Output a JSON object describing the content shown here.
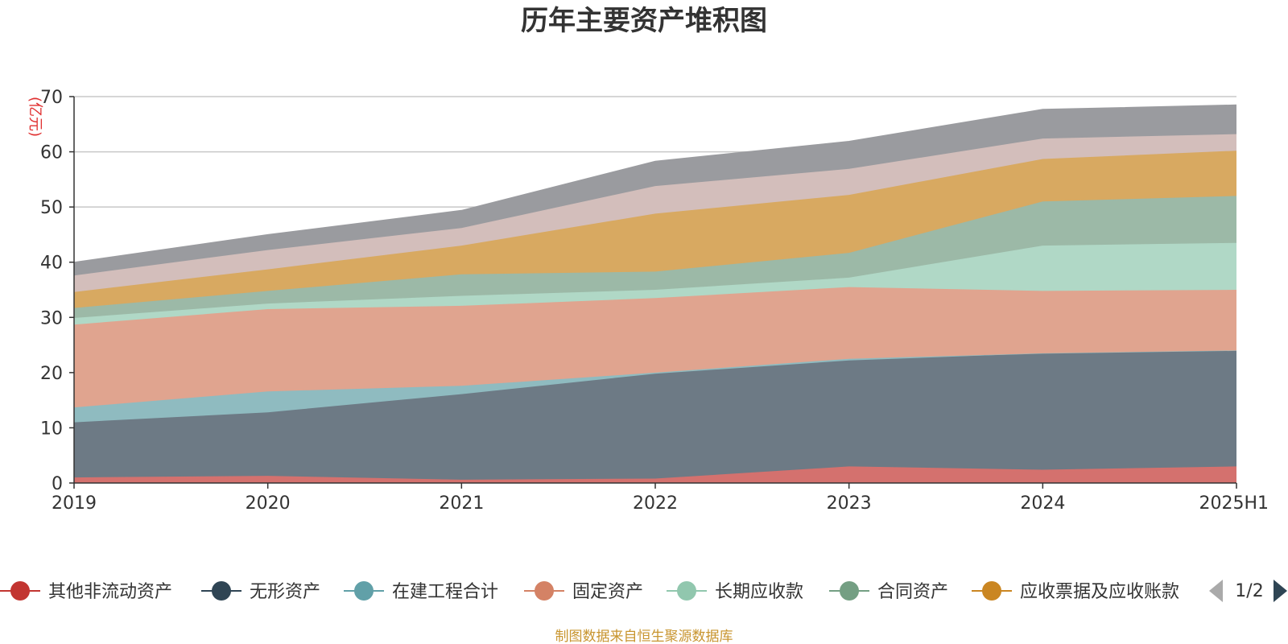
{
  "chart_data": {
    "type": "area",
    "stacked": true,
    "title": "历年主要资产堆积图",
    "unit_label": "(亿元)",
    "categories": [
      "2019",
      "2020",
      "2021",
      "2022",
      "2023",
      "2024",
      "2025H1"
    ],
    "ylim": [
      0,
      70
    ],
    "yticks": [
      0,
      10,
      20,
      30,
      40,
      50,
      60,
      70
    ],
    "grid": true,
    "series": [
      {
        "name": "其他非流动资产",
        "color": "#c23531",
        "fill": "#d4716e",
        "values": [
          1.0,
          1.3,
          0.6,
          0.8,
          3.0,
          2.4,
          3.0
        ]
      },
      {
        "name": "无形资产",
        "color": "#2f4554",
        "fill": "#6d7a85",
        "values": [
          10.0,
          11.5,
          15.5,
          19.0,
          19.2,
          21.1,
          21.0
        ]
      },
      {
        "name": "在建工程合计",
        "color": "#61a0a8",
        "fill": "#8fbbc0",
        "values": [
          2.7,
          3.8,
          1.5,
          0.2,
          0.3,
          0.0,
          0.0
        ]
      },
      {
        "name": "固定资产",
        "color": "#d48265",
        "fill": "#e0a48f",
        "values": [
          15.0,
          14.9,
          14.5,
          13.5,
          13.0,
          11.3,
          11.0
        ]
      },
      {
        "name": "长期应收款",
        "color": "#91c7ae",
        "fill": "#b0d8c6",
        "values": [
          1.2,
          1.0,
          1.8,
          1.5,
          1.7,
          8.2,
          8.5
        ]
      },
      {
        "name": "合同资产",
        "color": "#749f83",
        "fill": "#9cb9a7",
        "values": [
          1.8,
          2.3,
          3.9,
          3.3,
          4.5,
          8.0,
          8.5
        ]
      },
      {
        "name": "应收票据及应收账款",
        "color": "#ca8622",
        "fill": "#d8a961",
        "values": [
          2.9,
          3.9,
          5.2,
          10.5,
          10.5,
          7.7,
          8.2
        ]
      },
      {
        "name": "",
        "color": "#bda29a",
        "fill": "#d3bebb",
        "values": [
          3.0,
          3.5,
          3.2,
          5.0,
          4.7,
          3.7,
          3.0
        ]
      },
      {
        "name": "",
        "color": "#6e7074",
        "fill": "#9a9b9f",
        "values": [
          2.4,
          2.8,
          3.2,
          4.5,
          5.0,
          5.3,
          5.3
        ]
      }
    ],
    "legend_position": "bottom"
  },
  "legend": {
    "visible_count": 7,
    "page_indicator": "1/2"
  },
  "source_note": "制图数据来自恒生聚源数据库"
}
